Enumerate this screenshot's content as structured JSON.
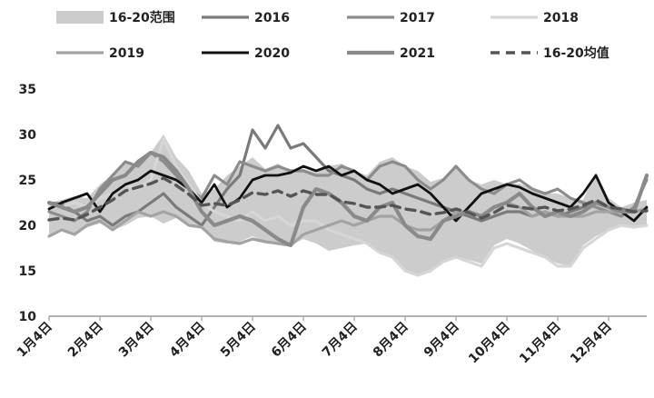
{
  "chart_data": {
    "type": "line",
    "title": "",
    "xlabel": "",
    "ylabel": "",
    "ylim": [
      10,
      35
    ],
    "yticks": [
      10,
      15,
      20,
      25,
      30,
      35
    ],
    "x_tick_labels": [
      "1月4日",
      "2月4日",
      "3月4日",
      "4月4日",
      "5月4日",
      "6月4日",
      "7月4日",
      "8月4日",
      "9月4日",
      "10月4日",
      "11月4日",
      "12月4日"
    ],
    "x_tick_positions": [
      0,
      4,
      8,
      12,
      16,
      20,
      24,
      28,
      32,
      36,
      40,
      44
    ],
    "x_max": 47,
    "grid": false,
    "legend_position": "top",
    "range": {
      "name": "16-20范围",
      "color": "#cccccc",
      "low": [
        18.8,
        19.5,
        19.0,
        19.8,
        20.2,
        19.5,
        20.0,
        20.8,
        21.0,
        20.2,
        20.8,
        20.2,
        19.8,
        18.2,
        18.0,
        18.2,
        18.8,
        18.2,
        18.0,
        17.8,
        18.5,
        18.0,
        17.2,
        17.5,
        17.8,
        18.0,
        17.0,
        16.5,
        15.0,
        14.5,
        14.8,
        16.0,
        16.5,
        16.2,
        15.8,
        17.8,
        18.5,
        18.0,
        17.2,
        16.5,
        15.8,
        15.5,
        17.8,
        18.8,
        19.5,
        20.0,
        19.8,
        20.0
      ],
      "high": [
        22.5,
        22.8,
        23.2,
        23.0,
        24.5,
        25.5,
        27.0,
        26.5,
        28.0,
        30.0,
        27.5,
        26.0,
        23.5,
        24.0,
        25.5,
        26.5,
        27.5,
        26.2,
        26.8,
        26.0,
        26.2,
        25.8,
        26.5,
        26.8,
        26.0,
        25.5,
        27.0,
        27.5,
        26.5,
        26.0,
        24.8,
        25.2,
        26.3,
        25.0,
        24.5,
        25.0,
        24.5,
        24.6,
        24.0,
        23.5,
        23.5,
        23.0,
        22.8,
        25.8,
        23.0,
        22.0,
        22.5,
        22.8
      ]
    },
    "series": [
      {
        "name": "2016",
        "color": "#7a7a7a",
        "width": 3.2,
        "dash": "",
        "values": [
          22.5,
          22.3,
          21.5,
          20.5,
          21.0,
          20.0,
          21.0,
          21.5,
          22.5,
          23.5,
          22.0,
          21.0,
          20.0,
          22.0,
          24.0,
          25.5,
          30.5,
          28.5,
          31.0,
          28.5,
          29.0,
          27.5,
          26.0,
          25.5,
          25.0,
          24.0,
          23.5,
          24.0,
          23.5,
          23.0,
          22.5,
          22.0,
          21.5,
          21.0,
          20.5,
          21.0,
          21.5,
          21.5,
          21.0,
          21.5,
          21.0,
          21.5,
          22.0,
          22.5,
          22.0,
          21.8,
          21.5,
          21.8
        ]
      },
      {
        "name": "2017",
        "color": "#8c8c8c",
        "width": 3.2,
        "dash": "",
        "values": [
          21.5,
          21.0,
          20.5,
          21.5,
          24.0,
          25.5,
          27.0,
          26.5,
          28.0,
          27.0,
          25.5,
          24.0,
          23.0,
          25.5,
          24.5,
          27.0,
          26.5,
          26.0,
          26.5,
          26.0,
          26.0,
          25.5,
          25.5,
          26.5,
          26.0,
          25.0,
          26.5,
          27.0,
          26.5,
          25.0,
          24.0,
          25.0,
          26.5,
          25.0,
          24.0,
          23.5,
          24.5,
          25.0,
          24.0,
          23.5,
          24.0,
          23.0,
          22.5,
          22.0,
          21.5,
          21.0,
          22.0,
          25.0
        ]
      },
      {
        "name": "2018",
        "color": "#d6d6d6",
        "width": 3.2,
        "dash": "",
        "values": [
          22.3,
          22.0,
          22.5,
          22.0,
          23.0,
          23.5,
          24.5,
          24.0,
          25.0,
          29.5,
          26.5,
          24.5,
          22.5,
          21.5,
          21.0,
          20.5,
          21.5,
          20.5,
          21.0,
          20.0,
          20.5,
          20.5,
          19.5,
          19.0,
          18.5,
          18.0,
          17.0,
          16.5,
          15.0,
          14.5,
          15.0,
          16.0,
          16.5,
          16.0,
          15.5,
          17.5,
          18.0,
          17.5,
          17.0,
          16.5,
          15.5,
          15.5,
          17.5,
          18.5,
          19.5,
          20.0,
          19.8,
          20.0
        ]
      },
      {
        "name": "2019",
        "color": "#a3a3a3",
        "width": 3.2,
        "dash": "",
        "values": [
          18.8,
          19.5,
          19.0,
          20.0,
          20.5,
          19.5,
          20.5,
          21.5,
          21.0,
          21.5,
          21.0,
          20.0,
          19.8,
          18.5,
          18.2,
          18.0,
          18.5,
          18.2,
          18.0,
          17.8,
          19.0,
          19.5,
          20.0,
          20.5,
          20.0,
          20.5,
          21.0,
          21.0,
          20.0,
          19.5,
          19.5,
          20.5,
          21.5,
          21.5,
          21.0,
          22.0,
          22.5,
          22.0,
          21.0,
          21.5,
          21.0,
          21.0,
          21.0,
          21.5,
          21.5,
          21.5,
          21.5,
          21.8
        ]
      },
      {
        "name": "2020",
        "color": "#111111",
        "width": 2.8,
        "dash": "",
        "values": [
          21.8,
          22.5,
          23.0,
          23.5,
          21.5,
          23.5,
          24.5,
          25.0,
          26.0,
          25.5,
          25.0,
          24.0,
          22.5,
          24.5,
          22.0,
          23.0,
          25.0,
          25.5,
          25.5,
          25.8,
          26.5,
          26.0,
          26.5,
          25.5,
          26.0,
          25.0,
          24.5,
          23.5,
          24.0,
          24.5,
          23.5,
          22.0,
          20.5,
          22.0,
          23.5,
          24.0,
          24.5,
          24.2,
          23.5,
          23.0,
          22.5,
          22.0,
          23.5,
          25.5,
          22.5,
          21.5,
          20.5,
          22.0
        ]
      },
      {
        "name": "2021",
        "color": "#8a8a8a",
        "width": 4.2,
        "dash": "",
        "values": [
          22.5,
          22.0,
          21.5,
          22.0,
          23.5,
          25.0,
          25.5,
          27.0,
          28.0,
          27.5,
          26.0,
          24.0,
          21.5,
          20.0,
          20.5,
          21.0,
          20.5,
          19.5,
          18.5,
          17.8,
          22.0,
          24.0,
          23.5,
          22.5,
          21.0,
          20.5,
          22.0,
          22.5,
          20.0,
          18.8,
          18.5,
          20.5,
          21.0,
          21.5,
          21.0,
          22.0,
          22.5,
          23.5,
          22.0,
          21.0,
          21.5,
          21.0,
          21.5,
          22.5,
          22.0,
          21.5,
          21.5,
          25.5
        ]
      },
      {
        "name": "16-20均值",
        "color": "#555555",
        "width": 3.4,
        "dash": "10,7",
        "values": [
          20.6,
          20.8,
          20.6,
          21.2,
          22.0,
          22.8,
          23.8,
          24.2,
          24.6,
          25.2,
          24.4,
          23.4,
          22.2,
          22.4,
          22.2,
          22.8,
          23.6,
          23.4,
          23.8,
          23.2,
          23.8,
          23.4,
          23.4,
          22.6,
          22.4,
          22.0,
          22.0,
          22.2,
          21.8,
          21.6,
          21.2,
          21.4,
          21.8,
          21.4,
          20.8,
          21.4,
          22.2,
          22.0,
          21.8,
          22.0,
          21.6,
          21.8,
          22.2,
          22.8,
          22.0,
          21.8,
          21.5,
          21.6
        ]
      }
    ]
  }
}
